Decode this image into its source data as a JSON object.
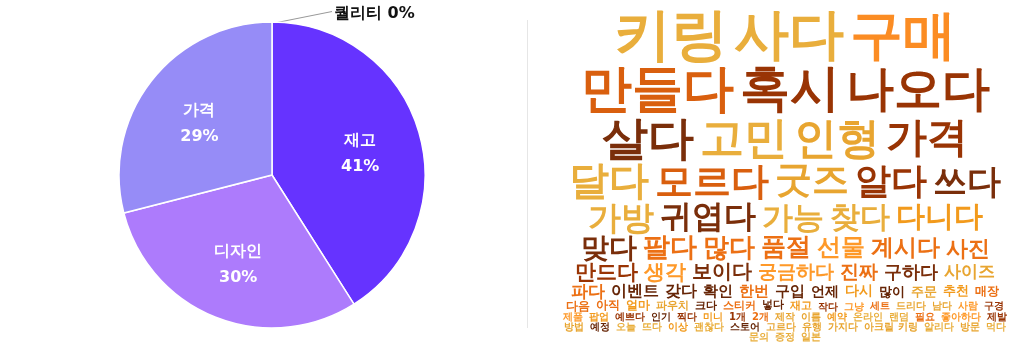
{
  "chart_data": [
    {
      "type": "pie",
      "categories": [
        "퀄리티",
        "재고",
        "디자인",
        "가격"
      ],
      "values": [
        0,
        41,
        30,
        29
      ],
      "value_labels": [
        "0%",
        "41%",
        "30%",
        "29%"
      ],
      "colors": [
        "#6633ff",
        "#6633ff",
        "#ad7bfc",
        "#968cf7"
      ]
    },
    {
      "type": "other",
      "categories": [
        "키링",
        "사다",
        "구매",
        "만들다",
        "혹시",
        "나오다",
        "살다",
        "고민",
        "인형",
        "가격",
        "달다",
        "모르다",
        "굿즈",
        "알다",
        "쓰다",
        "가방",
        "귀엽다",
        "가능",
        "찾다",
        "다니다",
        "맞다",
        "팔다",
        "많다",
        "품절",
        "선물",
        "계시다",
        "사진",
        "만드다",
        "생각",
        "보이다",
        "궁금하다",
        "진짜",
        "구하다",
        "사이즈",
        "파다",
        "이벤트",
        "갖다",
        "확인",
        "한번",
        "구입",
        "언제",
        "다시",
        "많이",
        "주문",
        "추천",
        "매장",
        "다음",
        "아직",
        "얼마",
        "파우치",
        "크다",
        "스티커",
        "넣다",
        "재고",
        "작다",
        "그냥",
        "세트",
        "드리다",
        "남다",
        "사람",
        "구경",
        "제품",
        "팝업",
        "예쁘다",
        "인기",
        "찍다",
        "미니",
        "1개",
        "2개",
        "제작",
        "이름",
        "예약",
        "온라인",
        "랜덤",
        "필요",
        "좋아하다",
        "제발",
        "방법",
        "예정",
        "오늘",
        "뜨다",
        "이상",
        "괜찮다",
        "스토어",
        "고르다",
        "유행",
        "가지다",
        "아크릴 키링",
        "알리다",
        "방문",
        "먹다",
        "문의",
        "증정",
        "일본"
      ],
      "colors": [
        "#e9ae3c",
        "#e9ae3c",
        "#fb8c23",
        "#d95f0e",
        "#993404",
        "#993404",
        "#7a2e0a",
        "#e9ae3c",
        "#e8a530",
        "#993404",
        "#e9ae3c",
        "#d95f0e",
        "#e8a530",
        "#993404",
        "#7a2e0a",
        "#e9ae3c",
        "#7a2e0a",
        "#e9ae3c",
        "#e9ae3c",
        "#f29a1c",
        "#7a2e0a",
        "#ec7014",
        "#ec7014",
        "#ec7014",
        "#fe9929",
        "#ec7014",
        "#ec7014",
        "#993404",
        "#fe9929",
        "#7a2e0a",
        "#fe9929",
        "#ec7014",
        "#7a2e0a",
        "#e8a530",
        "#ec7014",
        "#662506",
        "#662506",
        "#662506",
        "#ec7014",
        "#662506",
        "#662506",
        "#f29a1c",
        "#662506",
        "#e8a530",
        "#f29a1c",
        "#ec7014",
        "#ec7014",
        "#ec7014",
        "#f29a1c",
        "#e8a530",
        "#662506",
        "#ec7014",
        "#662506",
        "#f29a1c",
        "#993404",
        "#fe9929",
        "#ec7014",
        "#e8a530",
        "#e8a530",
        "#fe9929",
        "#993404",
        "#fe9929",
        "#f29a1c",
        "#993404",
        "#662506",
        "#993404",
        "#f29a1c",
        "#993404",
        "#ec7014",
        "#e8a530",
        "#e8a530",
        "#f29a1c",
        "#e9ae3c",
        "#e9ae3c",
        "#ec7014",
        "#fe9929",
        "#993404",
        "#e8a530",
        "#662506",
        "#e9ae3c",
        "#e9ae3c",
        "#f29a1c",
        "#e9ae3c",
        "#662506",
        "#e8a530",
        "#e8a530",
        "#e8a530",
        "#e8a530",
        "#e9ae3c",
        "#e8a530",
        "#e9ae3c",
        "#e9ae3c",
        "#e9ae3c",
        "#e9ae3c"
      ]
    }
  ]
}
